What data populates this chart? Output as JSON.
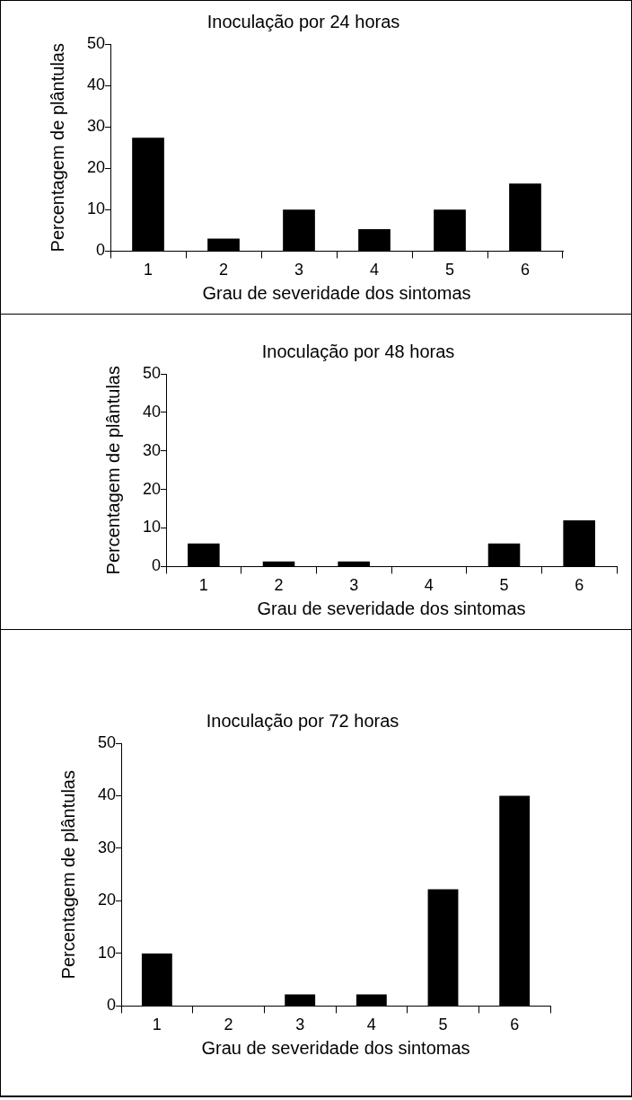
{
  "chart_data": [
    {
      "type": "bar",
      "title": "Inoculação por 24 horas",
      "xlabel": "Grau de severidade dos sintomas",
      "ylabel": "Percentagem de plântulas",
      "categories": [
        "1",
        "2",
        "3",
        "4",
        "5",
        "6"
      ],
      "values": [
        27.4,
        3,
        10,
        5.3,
        10,
        16.3
      ],
      "color": "#000000",
      "ylim": [
        0,
        50
      ],
      "yticks": [
        0,
        10,
        20,
        30,
        40,
        50
      ],
      "grid": false,
      "legend": false
    },
    {
      "type": "bar",
      "title": "Inoculação por 48 horas",
      "xlabel": "Grau de severidade dos sintomas",
      "ylabel": "Percentagem de plântulas",
      "categories": [
        "1",
        "2",
        "3",
        "4",
        "5",
        "6"
      ],
      "values": [
        6,
        1.3,
        1.3,
        0,
        6,
        12
      ],
      "color": "#000000",
      "ylim": [
        0,
        50
      ],
      "yticks": [
        0,
        10,
        20,
        30,
        40,
        50
      ],
      "grid": false,
      "legend": false
    },
    {
      "type": "bar",
      "title": "Inoculação por 72 horas",
      "xlabel": "Grau de severidade dos sintomas",
      "ylabel": "Percentagem de plântulas",
      "categories": [
        "1",
        "2",
        "3",
        "4",
        "5",
        "6"
      ],
      "values": [
        10,
        0,
        2.2,
        2.2,
        22.2,
        40
      ],
      "color": "#000000",
      "ylim": [
        0,
        50
      ],
      "yticks": [
        0,
        10,
        20,
        30,
        40,
        50
      ],
      "grid": false,
      "legend": false
    }
  ]
}
